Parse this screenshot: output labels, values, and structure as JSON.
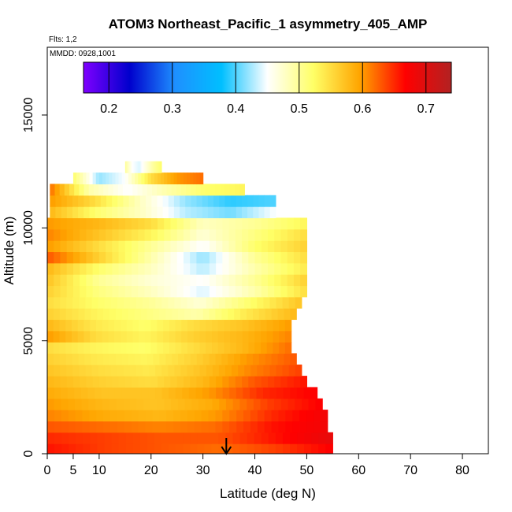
{
  "chart_data": {
    "type": "heatmap",
    "title": "ATOM3 Northeast_Pacific_1 asymmetry_405_AMP",
    "annotations": [
      "Flts: 1,2",
      "MMDD: 0928,1001"
    ],
    "xlabel": "Latitude (deg N)",
    "ylabel": "Altitude (m)",
    "xlim": [
      0,
      85
    ],
    "ylim": [
      0,
      18000
    ],
    "x_ticks": [
      0,
      5,
      10,
      20,
      30,
      40,
      50,
      60,
      70,
      80
    ],
    "y_ticks": [
      0,
      5000,
      10000,
      15000
    ],
    "colorbar": {
      "range": [
        0.16,
        0.74
      ],
      "ticks": [
        0.2,
        0.3,
        0.4,
        0.5,
        0.6,
        0.7
      ],
      "colors": [
        "#7f00ff",
        "#0000cd",
        "#1e90ff",
        "#00bfff",
        "#ffffff",
        "#ffff66",
        "#ffa500",
        "#ff0000",
        "#b22222"
      ]
    },
    "marker_arrow_latitude": 34.5,
    "layers": [
      {
        "alt": 200,
        "lat_min": 0,
        "lat_max": 55,
        "values": [
          0.66,
          0.64,
          0.63,
          0.62,
          0.64,
          0.67
        ]
      },
      {
        "alt": 700,
        "lat_min": 0,
        "lat_max": 55,
        "values": [
          0.65,
          0.64,
          0.63,
          0.63,
          0.66,
          0.69
        ]
      },
      {
        "alt": 1200,
        "lat_min": 0,
        "lat_max": 54,
        "values": [
          0.63,
          0.62,
          0.61,
          0.62,
          0.66,
          0.68
        ]
      },
      {
        "alt": 1700,
        "lat_min": 0,
        "lat_max": 54,
        "values": [
          0.61,
          0.59,
          0.58,
          0.6,
          0.65,
          0.68
        ]
      },
      {
        "alt": 2200,
        "lat_min": 0,
        "lat_max": 53,
        "values": [
          0.6,
          0.58,
          0.57,
          0.59,
          0.64,
          0.67
        ]
      },
      {
        "alt": 2700,
        "lat_min": 0,
        "lat_max": 52,
        "values": [
          0.59,
          0.57,
          0.57,
          0.6,
          0.65,
          0.67
        ]
      },
      {
        "alt": 3200,
        "lat_min": 0,
        "lat_max": 50,
        "values": [
          0.58,
          0.56,
          0.55,
          0.58,
          0.63,
          0.66
        ]
      },
      {
        "alt": 3700,
        "lat_min": 0,
        "lat_max": 49,
        "values": [
          0.57,
          0.55,
          0.54,
          0.57,
          0.61,
          0.64
        ]
      },
      {
        "alt": 4200,
        "lat_min": 0,
        "lat_max": 48,
        "values": [
          0.56,
          0.54,
          0.53,
          0.56,
          0.6,
          0.63
        ]
      },
      {
        "alt": 4700,
        "lat_min": 0,
        "lat_max": 47,
        "values": [
          0.55,
          0.53,
          0.52,
          0.55,
          0.58,
          0.62
        ]
      },
      {
        "alt": 5200,
        "lat_min": 0,
        "lat_max": 47,
        "values": [
          0.6,
          0.55,
          0.53,
          0.56,
          0.58,
          0.61
        ]
      },
      {
        "alt": 5700,
        "lat_min": 0,
        "lat_max": 47,
        "values": [
          0.58,
          0.54,
          0.52,
          0.55,
          0.57,
          0.6
        ]
      },
      {
        "alt": 6200,
        "lat_min": 0,
        "lat_max": 48,
        "values": [
          0.56,
          0.53,
          0.51,
          0.49,
          0.54,
          0.58
        ]
      },
      {
        "alt": 6700,
        "lat_min": 0,
        "lat_max": 49,
        "values": [
          0.55,
          0.52,
          0.5,
          0.47,
          0.52,
          0.57
        ]
      },
      {
        "alt": 7200,
        "lat_min": 0,
        "lat_max": 50,
        "values": [
          0.56,
          0.51,
          0.48,
          0.44,
          0.49,
          0.55
        ]
      },
      {
        "alt": 7700,
        "lat_min": 0,
        "lat_max": 50,
        "values": [
          0.57,
          0.5,
          0.47,
          0.45,
          0.5,
          0.56
        ]
      },
      {
        "alt": 8200,
        "lat_min": 0,
        "lat_max": 50,
        "values": [
          0.58,
          0.52,
          0.48,
          0.43,
          0.49,
          0.54
        ]
      },
      {
        "alt": 8700,
        "lat_min": 0,
        "lat_max": 50,
        "values": [
          0.63,
          0.56,
          0.49,
          0.42,
          0.5,
          0.55
        ]
      },
      {
        "alt": 9200,
        "lat_min": 0,
        "lat_max": 50,
        "values": [
          0.6,
          0.55,
          0.5,
          0.45,
          0.52,
          0.56
        ]
      },
      {
        "alt": 9700,
        "lat_min": 0,
        "lat_max": 50,
        "values": [
          0.61,
          0.57,
          0.53,
          0.47,
          0.51,
          0.55
        ]
      },
      {
        "alt": 10200,
        "lat_min": 0,
        "lat_max": 50,
        "values": [
          0.6,
          0.58,
          0.55,
          0.48,
          0.5,
          0.53
        ]
      },
      {
        "alt": 10700,
        "lat_min": 0.5,
        "lat_max": 44,
        "values": [
          0.58,
          0.52,
          0.48,
          0.43,
          0.41,
          0.45
        ]
      },
      {
        "alt": 11200,
        "lat_min": 0.5,
        "lat_max": 44,
        "values": [
          0.6,
          0.55,
          0.48,
          0.42,
          0.39,
          0.4
        ]
      },
      {
        "alt": 11700,
        "lat_min": 0.5,
        "lat_max": 38,
        "values": [
          0.62,
          0.49,
          0.45,
          0.49,
          0.52,
          0.53
        ]
      },
      {
        "alt": 12200,
        "lat_min": 5,
        "lat_max": 30,
        "values": [
          0.52,
          0.42,
          0.45,
          0.55,
          0.6,
          0.62
        ]
      },
      {
        "alt": 12700,
        "lat_min": 15,
        "lat_max": 22,
        "values": [
          0.5,
          0.45,
          0.44,
          0.47,
          0.5,
          0.52
        ]
      }
    ]
  }
}
